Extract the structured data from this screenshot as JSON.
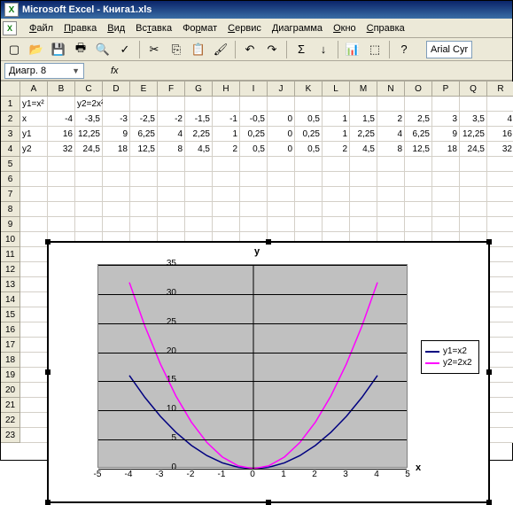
{
  "title": "Microsoft Excel - Книга1.xls",
  "menu": [
    "Файл",
    "Правка",
    "Вид",
    "Вставка",
    "Формат",
    "Сервис",
    "Диаграмма",
    "Окно",
    "Справка"
  ],
  "menu_underline_idx": [
    0,
    0,
    0,
    2,
    2,
    0,
    0,
    0,
    0
  ],
  "namebox": "Диагр. 8",
  "font_name": "Arial Cyr",
  "columns": [
    "A",
    "B",
    "C",
    "D",
    "E",
    "F",
    "G",
    "H",
    "I",
    "J",
    "K",
    "L",
    "M",
    "N",
    "O",
    "P",
    "Q",
    "R"
  ],
  "rows": [
    "1",
    "2",
    "3",
    "4",
    "5",
    "6",
    "7",
    "8",
    "9",
    "10",
    "11",
    "12",
    "13",
    "14",
    "15",
    "16",
    "17",
    "18",
    "19",
    "20",
    "21",
    "22",
    "23"
  ],
  "cells": {
    "A1": "y1=x²",
    "C1": "y2=2x²",
    "A2": "x",
    "B2": "-4",
    "C2": "-3,5",
    "D2": "-3",
    "E2": "-2,5",
    "F2": "-2",
    "G2": "-1,5",
    "H2": "-1",
    "I2": "-0,5",
    "J2": "0",
    "K2": "0,5",
    "L2": "1",
    "M2": "1,5",
    "N2": "2",
    "O2": "2,5",
    "P2": "3",
    "Q2": "3,5",
    "R2": "4",
    "A3": "y1",
    "B3": "16",
    "C3": "12,25",
    "D3": "9",
    "E3": "6,25",
    "F3": "4",
    "G3": "2,25",
    "H3": "1",
    "I3": "0,25",
    "J3": "0",
    "K3": "0,25",
    "L3": "1",
    "M3": "2,25",
    "N3": "4",
    "O3": "6,25",
    "P3": "9",
    "Q3": "12,25",
    "R3": "16",
    "A4": "y2",
    "B4": "32",
    "C4": "24,5",
    "D4": "18",
    "E4": "12,5",
    "F4": "8",
    "G4": "4,5",
    "H4": "2",
    "I4": "0,5",
    "J4": "0",
    "K4": "0,5",
    "L4": "2",
    "M4": "4,5",
    "N4": "8",
    "O4": "12,5",
    "P4": "18",
    "Q4": "24,5",
    "R4": "32"
  },
  "chart": {
    "ytitle": "y",
    "xtitle": "x",
    "ylim": [
      0,
      35
    ],
    "ytick_step": 5,
    "xlim": [
      -5,
      5
    ],
    "xtick_step": 1,
    "background_color": "#c0c0c0",
    "grid_color": "#000000",
    "series": [
      {
        "name": "y1=x2",
        "color": "#000080",
        "points": [
          [
            -4,
            16
          ],
          [
            -3.5,
            12.25
          ],
          [
            -3,
            9
          ],
          [
            -2.5,
            6.25
          ],
          [
            -2,
            4
          ],
          [
            -1.5,
            2.25
          ],
          [
            -1,
            1
          ],
          [
            -0.5,
            0.25
          ],
          [
            0,
            0
          ],
          [
            0.5,
            0.25
          ],
          [
            1,
            1
          ],
          [
            1.5,
            2.25
          ],
          [
            2,
            4
          ],
          [
            2.5,
            6.25
          ],
          [
            3,
            9
          ],
          [
            3.5,
            12.25
          ],
          [
            4,
            16
          ]
        ]
      },
      {
        "name": "y2=2x2",
        "color": "#ff00ff",
        "points": [
          [
            -4,
            32
          ],
          [
            -3.5,
            24.5
          ],
          [
            -3,
            18
          ],
          [
            -2.5,
            12.5
          ],
          [
            -2,
            8
          ],
          [
            -1.5,
            4.5
          ],
          [
            -1,
            2
          ],
          [
            -0.5,
            0.5
          ],
          [
            0,
            0
          ],
          [
            0.5,
            0.5
          ],
          [
            1,
            2
          ],
          [
            1.5,
            4.5
          ],
          [
            2,
            8
          ],
          [
            2.5,
            12.5
          ],
          [
            3,
            18
          ],
          [
            3.5,
            24.5
          ],
          [
            4,
            32
          ]
        ]
      }
    ],
    "legend_labels": [
      "y1=x2",
      "y2=2x2"
    ]
  },
  "toolbar_icons": [
    {
      "name": "new-icon",
      "glyph": "▢"
    },
    {
      "name": "open-icon",
      "glyph": "📂"
    },
    {
      "name": "save-icon",
      "glyph": "💾"
    },
    {
      "name": "print-icon",
      "glyph": "🖶"
    },
    {
      "name": "print-preview-icon",
      "glyph": "🔍"
    },
    {
      "name": "spell-icon",
      "glyph": "✓"
    },
    {
      "name": "sep"
    },
    {
      "name": "cut-icon",
      "glyph": "✂"
    },
    {
      "name": "copy-icon",
      "glyph": "⎘"
    },
    {
      "name": "paste-icon",
      "glyph": "📋"
    },
    {
      "name": "format-painter-icon",
      "glyph": "🖌"
    },
    {
      "name": "sep"
    },
    {
      "name": "undo-icon",
      "glyph": "↶"
    },
    {
      "name": "redo-icon",
      "glyph": "↷"
    },
    {
      "name": "sep"
    },
    {
      "name": "autosum-icon",
      "glyph": "Σ"
    },
    {
      "name": "sort-icon",
      "glyph": "↓"
    },
    {
      "name": "sep"
    },
    {
      "name": "chart-icon",
      "glyph": "📊"
    },
    {
      "name": "zoom-icon",
      "glyph": "⬚"
    },
    {
      "name": "sep"
    },
    {
      "name": "help-icon",
      "glyph": "?"
    }
  ]
}
